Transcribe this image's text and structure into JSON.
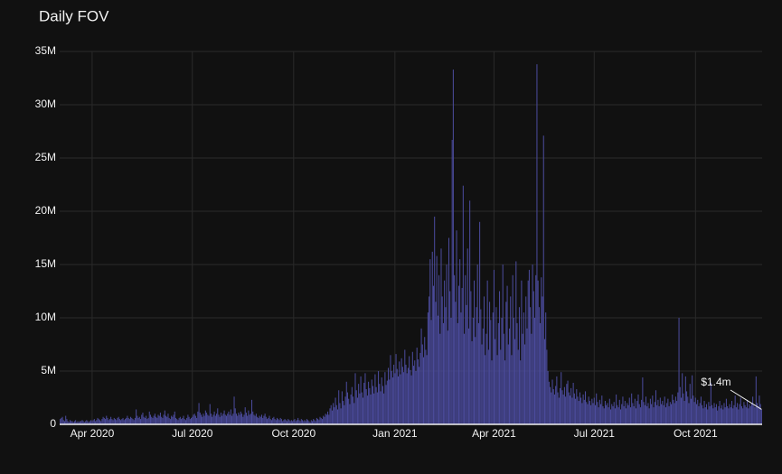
{
  "chart_data": {
    "type": "bar",
    "title": "Daily FOV",
    "color": "#4b4b9c",
    "grid": true,
    "annotation": {
      "text": "$1.4m"
    },
    "ylim": [
      0,
      35000000
    ],
    "yticks": [
      0,
      {
        "value": 5000000,
        "label": "5M"
      },
      {
        "value": 10000000,
        "label": "10M"
      },
      {
        "value": 15000000,
        "label": "15M"
      },
      {
        "value": 20000000,
        "label": "20M"
      },
      {
        "value": 25000000,
        "label": "25M"
      },
      {
        "value": 30000000,
        "label": "30M"
      },
      {
        "value": 35000000,
        "label": "35M"
      }
    ],
    "categories": [
      null,
      null,
      null,
      null,
      null,
      null,
      null,
      null,
      null,
      null,
      null,
      null,
      null,
      null,
      null,
      null,
      null,
      null,
      null,
      null,
      null,
      null,
      null,
      null,
      null,
      null,
      null,
      null,
      null,
      "Apr 2020",
      null,
      null,
      null,
      null,
      null,
      null,
      null,
      null,
      null,
      null,
      null,
      null,
      null,
      null,
      null,
      null,
      null,
      null,
      null,
      null,
      null,
      null,
      null,
      null,
      null,
      null,
      null,
      null,
      null,
      null,
      null,
      null,
      null,
      null,
      null,
      null,
      null,
      null,
      null,
      null,
      null,
      null,
      null,
      null,
      null,
      null,
      null,
      null,
      null,
      null,
      null,
      null,
      null,
      null,
      null,
      null,
      null,
      null,
      null,
      null,
      null,
      null,
      null,
      null,
      null,
      null,
      null,
      null,
      null,
      null,
      null,
      null,
      null,
      null,
      null,
      null,
      null,
      null,
      null,
      null,
      null,
      null,
      null,
      null,
      null,
      null,
      null,
      null,
      null,
      null,
      "Jul 2020",
      null,
      null,
      null,
      null,
      null,
      null,
      null,
      null,
      null,
      null,
      null,
      null,
      null,
      null,
      null,
      null,
      null,
      null,
      null,
      null,
      null,
      null,
      null,
      null,
      null,
      null,
      null,
      null,
      null,
      null,
      null,
      null,
      null,
      null,
      null,
      null,
      null,
      null,
      null,
      null,
      null,
      null,
      null,
      null,
      null,
      null,
      null,
      null,
      null,
      null,
      null,
      null,
      null,
      null,
      null,
      null,
      null,
      null,
      null,
      null,
      null,
      null,
      null,
      null,
      null,
      null,
      null,
      null,
      null,
      null,
      null,
      null,
      null,
      null,
      null,
      null,
      null,
      null,
      null,
      null,
      null,
      null,
      null,
      null,
      null,
      null,
      null,
      null,
      null,
      null,
      null,
      "Oct 2020",
      null,
      null,
      null,
      null,
      null,
      null,
      null,
      null,
      null,
      null,
      null,
      null,
      null,
      null,
      null,
      null,
      null,
      null,
      null,
      null,
      null,
      null,
      null,
      null,
      null,
      null,
      null,
      null,
      null,
      null,
      null,
      null,
      null,
      null,
      null,
      null,
      null,
      null,
      null,
      null,
      null,
      null,
      null,
      null,
      null,
      null,
      null,
      null,
      null,
      null,
      null,
      null,
      null,
      null,
      null,
      null,
      null,
      null,
      null,
      null,
      null,
      null,
      null,
      null,
      null,
      null,
      null,
      null,
      null,
      null,
      null,
      null,
      null,
      null,
      null,
      null,
      null,
      null,
      null,
      null,
      null,
      null,
      null,
      null,
      null,
      null,
      null,
      null,
      null,
      null,
      null,
      "Jan 2021",
      null,
      null,
      null,
      null,
      null,
      null,
      null,
      null,
      null,
      null,
      null,
      null,
      null,
      null,
      null,
      null,
      null,
      null,
      null,
      null,
      null,
      null,
      null,
      null,
      null,
      null,
      null,
      null,
      null,
      null,
      null,
      null,
      null,
      null,
      null,
      null,
      null,
      null,
      null,
      null,
      null,
      null,
      null,
      null,
      null,
      null,
      null,
      null,
      null,
      null,
      null,
      null,
      null,
      null,
      null,
      null,
      null,
      null,
      null,
      null,
      null,
      null,
      null,
      null,
      null,
      null,
      null,
      null,
      null,
      null,
      null,
      null,
      null,
      null,
      null,
      null,
      null,
      null,
      null,
      null,
      null,
      null,
      null,
      null,
      null,
      null,
      null,
      null,
      null,
      "Apr 2021",
      null,
      null,
      null,
      null,
      null,
      null,
      null,
      null,
      null,
      null,
      null,
      null,
      null,
      null,
      null,
      null,
      null,
      null,
      null,
      null,
      null,
      null,
      null,
      null,
      null,
      null,
      null,
      null,
      null,
      null,
      null,
      null,
      null,
      null,
      null,
      null,
      null,
      null,
      null,
      null,
      null,
      null,
      null,
      null,
      null,
      null,
      null,
      null,
      null,
      null,
      null,
      null,
      null,
      null,
      null,
      null,
      null,
      null,
      null,
      null,
      null,
      null,
      null,
      null,
      null,
      null,
      null,
      null,
      null,
      null,
      null,
      null,
      null,
      null,
      null,
      null,
      null,
      null,
      null,
      null,
      null,
      null,
      null,
      null,
      null,
      null,
      null,
      null,
      null,
      null,
      "Jul 2021",
      null,
      null,
      null,
      null,
      null,
      null,
      null,
      null,
      null,
      null,
      null,
      null,
      null,
      null,
      null,
      null,
      null,
      null,
      null,
      null,
      null,
      null,
      null,
      null,
      null,
      null,
      null,
      null,
      null,
      null,
      null,
      null,
      null,
      null,
      null,
      null,
      null,
      null,
      null,
      null,
      null,
      null,
      null,
      null,
      null,
      null,
      null,
      null,
      null,
      null,
      null,
      null,
      null,
      null,
      null,
      null,
      null,
      null,
      null,
      null,
      null,
      null,
      null,
      null,
      null,
      null,
      null,
      null,
      null,
      null,
      null,
      null,
      null,
      null,
      null,
      null,
      null,
      null,
      null,
      null,
      null,
      null,
      null,
      null,
      null,
      null,
      null,
      null,
      null,
      null,
      null,
      "Oct 2021",
      null,
      null,
      null,
      null,
      null,
      null,
      null,
      null,
      null,
      null,
      null,
      null,
      null,
      null,
      null,
      null,
      null,
      null,
      null,
      null,
      null,
      null,
      null,
      null,
      null,
      null,
      null,
      null,
      null,
      null,
      null,
      null,
      null,
      null,
      null,
      null,
      null,
      null,
      null,
      null,
      null,
      null,
      null,
      null,
      null,
      null,
      null,
      null,
      null,
      null,
      null,
      null,
      null,
      null,
      null,
      null,
      null,
      null,
      null,
      null
    ],
    "values": [
      500000.0,
      600000.0,
      700000.0,
      400000.0,
      300000.0,
      800000.0,
      500000.0,
      300000.0,
      200000.0,
      400000.0,
      300000.0,
      300000.0,
      200000.0,
      300000.0,
      400000.0,
      200000.0,
      300000.0,
      200000.0,
      300000.0,
      300000.0,
      400000.0,
      300000.0,
      200000.0,
      300000.0,
      400000.0,
      300000.0,
      200000.0,
      300000.0,
      400000.0,
      300000.0,
      400000.0,
      500000.0,
      300000.0,
      400000.0,
      600000.0,
      500000.0,
      400000.0,
      300000.0,
      500000.0,
      700000.0,
      600000.0,
      500000.0,
      800000.0,
      600000.0,
      400000.0,
      500000.0,
      700000.0,
      500000.0,
      400000.0,
      600000.0,
      500000.0,
      400000.0,
      600000.0,
      700000.0,
      500000.0,
      400000.0,
      500000.0,
      600000.0,
      400000.0,
      500000.0,
      600000.0,
      800000.0,
      600000.0,
      500000.0,
      700000.0,
      600000.0,
      500000.0,
      400000.0,
      600000.0,
      1400000.0,
      800000.0,
      600000.0,
      700000.0,
      500000.0,
      900000.0,
      1100000.0,
      700000.0,
      600000.0,
      800000.0,
      500000.0,
      600000.0,
      1200000.0,
      900000.0,
      700000.0,
      600000.0,
      800000.0,
      1000000.0,
      700000.0,
      600000.0,
      900000.0,
      800000.0,
      1100000.0,
      700000.0,
      600000.0,
      900000.0,
      1300000.0,
      800000.0,
      700000.0,
      1000000.0,
      600000.0,
      500000.0,
      800000.0,
      700000.0,
      900000.0,
      1200000.0,
      600000.0,
      500000.0,
      400000.0,
      600000.0,
      700000.0,
      500000.0,
      600000.0,
      800000.0,
      500000.0,
      400000.0,
      600000.0,
      900000.0,
      700000.0,
      500000.0,
      600000.0,
      700000.0,
      900000.0,
      1000000.0,
      800000.0,
      600000.0,
      1200000.0,
      2000000.0,
      1100000.0,
      900000.0,
      700000.0,
      1000000.0,
      800000.0,
      1300000.0,
      1100000.0,
      900000.0,
      800000.0,
      1900000.0,
      1000000.0,
      700000.0,
      900000.0,
      1200000.0,
      800000.0,
      1000000.0,
      1500000.0,
      900000.0,
      700000.0,
      1100000.0,
      800000.0,
      1000000.0,
      1300000.0,
      900000.0,
      800000.0,
      1000000.0,
      1200000.0,
      900000.0,
      1400000.0,
      800000.0,
      1000000.0,
      2600000.0,
      1500000.0,
      1000000.0,
      800000.0,
      1100000.0,
      900000.0,
      1200000.0,
      1000000.0,
      700000.0,
      900000.0,
      1600000.0,
      1100000.0,
      800000.0,
      1300000.0,
      900000.0,
      1000000.0,
      2300000.0,
      1200000.0,
      900000.0,
      800000.0,
      1000000.0,
      700000.0,
      600000.0,
      800000.0,
      700000.0,
      900000.0,
      600000.0,
      800000.0,
      1000000.0,
      700000.0,
      500000.0,
      600000.0,
      800000.0,
      500000.0,
      400000.0,
      600000.0,
      700000.0,
      500000.0,
      400000.0,
      600000.0,
      500000.0,
      400000.0,
      600000.0,
      500000.0,
      300000.0,
      400000.0,
      500000.0,
      400000.0,
      300000.0,
      500000.0,
      400000.0,
      300000.0,
      400000.0,
      300000.0,
      400000.0,
      500000.0,
      300000.0,
      400000.0,
      600000.0,
      400000.0,
      300000.0,
      500000.0,
      400000.0,
      300000.0,
      400000.0,
      300000.0,
      500000.0,
      400000.0,
      300000.0,
      200000.0,
      400000.0,
      300000.0,
      500000.0,
      400000.0,
      300000.0,
      600000.0,
      500000.0,
      400000.0,
      700000.0,
      600000.0,
      500000.0,
      800000.0,
      700000.0,
      1000000.0,
      900000.0,
      1200000.0,
      900000.0,
      1500000.0,
      1800000.0,
      1300000.0,
      2000000.0,
      1600000.0,
      2500000.0,
      1800000.0,
      1400000.0,
      3200000.0,
      2000000.0,
      1500000.0,
      3100000.0,
      2200000.0,
      1800000.0,
      2600000.0,
      4000000.0,
      3000000.0,
      2400000.0,
      1900000.0,
      2800000.0,
      3500000.0,
      2600000.0,
      2000000.0,
      4800000.0,
      3200000.0,
      2500000.0,
      3800000.0,
      2900000.0,
      4500000.0,
      3000000.0,
      2500000.0,
      3900000.0,
      4800000.0,
      3300000.0,
      2700000.0,
      4000000.0,
      3400000.0,
      2800000.0,
      4200000.0,
      3600000.0,
      2900000.0,
      4700000.0,
      3500000.0,
      3000000.0,
      5000000.0,
      3800000.0,
      3100000.0,
      4400000.0,
      3600000.0,
      2900000.0,
      4900000.0,
      3700000.0,
      4100000.0,
      5300000.0,
      4200000.0,
      6500000.0,
      5000000.0,
      4400000.0,
      5600000.0,
      4800000.0,
      6600000.0,
      5200000.0,
      4500000.0,
      5900000.0,
      4700000.0,
      6200000.0,
      5400000.0,
      4900000.0,
      7000000.0,
      5600000.0,
      4800000.0,
      5300000.0,
      6400000.0,
      5100000.0,
      4600000.0,
      6800000.0,
      5500000.0,
      6000000.0,
      5000000.0,
      7200000.0,
      6100000.0,
      5400000.0,
      6700000.0,
      9000000.0,
      7500000.0,
      6300000.0,
      8200000.0,
      7000000.0,
      6500000.0,
      10500000.0,
      12000000.0,
      15500000.0,
      9800000.0,
      16200000.0,
      13000000.0,
      19500000.0,
      11500000.0,
      15800000.0,
      10200000.0,
      14000000.0,
      8500000.0,
      16500000.0,
      12000000.0,
      9500000.0,
      13500000.0,
      11000000.0,
      15000000.0,
      8800000.0,
      17500000.0,
      12500000.0,
      10000000.0,
      26700000.0,
      33300000.0,
      14000000.0,
      11500000.0,
      18200000.0,
      9500000.0,
      13000000.0,
      15500000.0,
      10500000.0,
      12800000.0,
      22400000.0,
      8500000.0,
      14000000.0,
      11200000.0,
      16500000.0,
      9000000.0,
      21000000.0,
      12500000.0,
      7800000.0,
      10000000.0,
      13500000.0,
      8200000.0,
      11000000.0,
      15000000.0,
      9500000.0,
      19000000.0,
      10800000.0,
      7500000.0,
      9000000.0,
      12000000.0,
      6500000.0,
      8500000.0,
      13500000.0,
      7000000.0,
      11500000.0,
      9800000.0,
      6000000.0,
      10500000.0,
      14500000.0,
      8000000.0,
      11000000.0,
      6500000.0,
      9500000.0,
      12500000.0,
      7000000.0,
      10000000.0,
      15000000.0,
      8500000.0,
      6000000.0,
      11500000.0,
      13000000.0,
      7500000.0,
      9000000.0,
      12000000.0,
      6500000.0,
      14000000.0,
      10000000.0,
      8000000.0,
      15300000.0,
      9500000.0,
      7000000.0,
      11000000.0,
      6000000.0,
      13500000.0,
      8500000.0,
      10500000.0,
      7500000.0,
      12000000.0,
      9000000.0,
      13500000.0,
      14500000.0,
      11000000.0,
      8500000.0,
      15000000.0,
      12500000.0,
      10000000.0,
      14000000.0,
      33800000.0,
      13500000.0,
      11000000.0,
      9500000.0,
      13800000.0,
      12000000.0,
      27100000.0,
      8000000.0,
      10500000.0,
      7000000.0,
      5000000.0,
      4000000.0,
      3500000.0,
      3000000.0,
      4200000.0,
      3300000.0,
      2800000.0,
      3600000.0,
      4500000.0,
      3000000.0,
      2500000.0,
      3400000.0,
      4900000.0,
      3200000.0,
      2800000.0,
      3500000.0,
      2600000.0,
      3800000.0,
      4100000.0,
      3000000.0,
      2700000.0,
      3400000.0,
      2500000.0,
      3900000.0,
      2900000.0,
      2400000.0,
      3300000.0,
      2600000.0,
      2200000.0,
      3000000.0,
      2500000.0,
      2000000.0,
      2800000.0,
      2300000.0,
      3100000.0,
      2100000.0,
      1900000.0,
      2600000.0,
      2200000.0,
      1800000.0,
      2400000.0,
      2000000.0,
      2500000.0,
      1800000.0,
      2900000.0,
      2100000.0,
      1600000.0,
      2300000.0,
      1900000.0,
      2700000.0,
      1700000.0,
      1500000.0,
      2200000.0,
      1800000.0,
      2000000.0,
      1600000.0,
      2400000.0,
      1400000.0,
      1900000.0,
      1700000.0,
      2100000.0,
      1500000.0,
      2800000.0,
      1800000.0,
      1600000.0,
      2300000.0,
      1400000.0,
      1900000.0,
      2600000.0,
      1700000.0,
      2200000.0,
      1500000.0,
      2000000.0,
      1800000.0,
      2500000.0,
      1600000.0,
      2900000.0,
      2000000.0,
      1700000.0,
      2400000.0,
      1500000.0,
      2200000.0,
      2800000.0,
      1900000.0,
      1600000.0,
      2300000.0,
      4400000.0,
      2100000.0,
      1800000.0,
      2600000.0,
      1700000.0,
      2000000.0,
      1500000.0,
      2400000.0,
      1900000.0,
      2700000.0,
      1600000.0,
      2100000.0,
      3200000.0,
      1800000.0,
      2300000.0,
      1700000.0,
      2500000.0,
      1900000.0,
      2200000.0,
      1800000.0,
      2600000.0,
      1600000.0,
      2000000.0,
      2400000.0,
      1700000.0,
      2100000.0,
      1900000.0,
      2800000.0,
      2300000.0,
      2000000.0,
      2600000.0,
      2200000.0,
      3000000.0,
      10000000.0,
      3500000.0,
      2500000.0,
      4800000.0,
      2900000.0,
      2200000.0,
      4500000.0,
      3100000.0,
      2600000.0,
      2000000.0,
      3800000.0,
      2400000.0,
      4600000.0,
      2700000.0,
      2100000.0,
      2500000.0,
      1900000.0,
      2300000.0,
      1700000.0,
      2000000.0,
      2600000.0,
      1800000.0,
      1500000.0,
      2200000.0,
      1600000.0,
      1900000.0,
      1400000.0,
      2100000.0,
      1700000.0,
      3900000.0,
      1800000.0,
      1500000.0,
      2000000.0,
      1600000.0,
      1900000.0,
      1300000.0,
      1700000.0,
      2200000.0,
      1500000.0,
      1800000.0,
      1400000.0,
      2000000.0,
      1600000.0,
      2400000.0,
      1700000.0,
      1500000.0,
      1900000.0,
      1600000.0,
      2200000.0,
      1500000.0,
      1800000.0,
      2700000.0,
      1600000.0,
      2000000.0,
      1400000.0,
      1900000.0,
      2500000.0,
      1700000.0,
      1500000.0,
      2100000.0,
      1800000.0,
      1600000.0,
      2300000.0,
      1500000.0,
      1900000.0,
      1700000.0,
      2000000.0,
      2600000.0,
      1800000.0,
      1600000.0,
      4500000.0,
      2000000.0,
      1700000.0,
      2700000.0,
      1900000.0,
      1400000.0
    ]
  }
}
